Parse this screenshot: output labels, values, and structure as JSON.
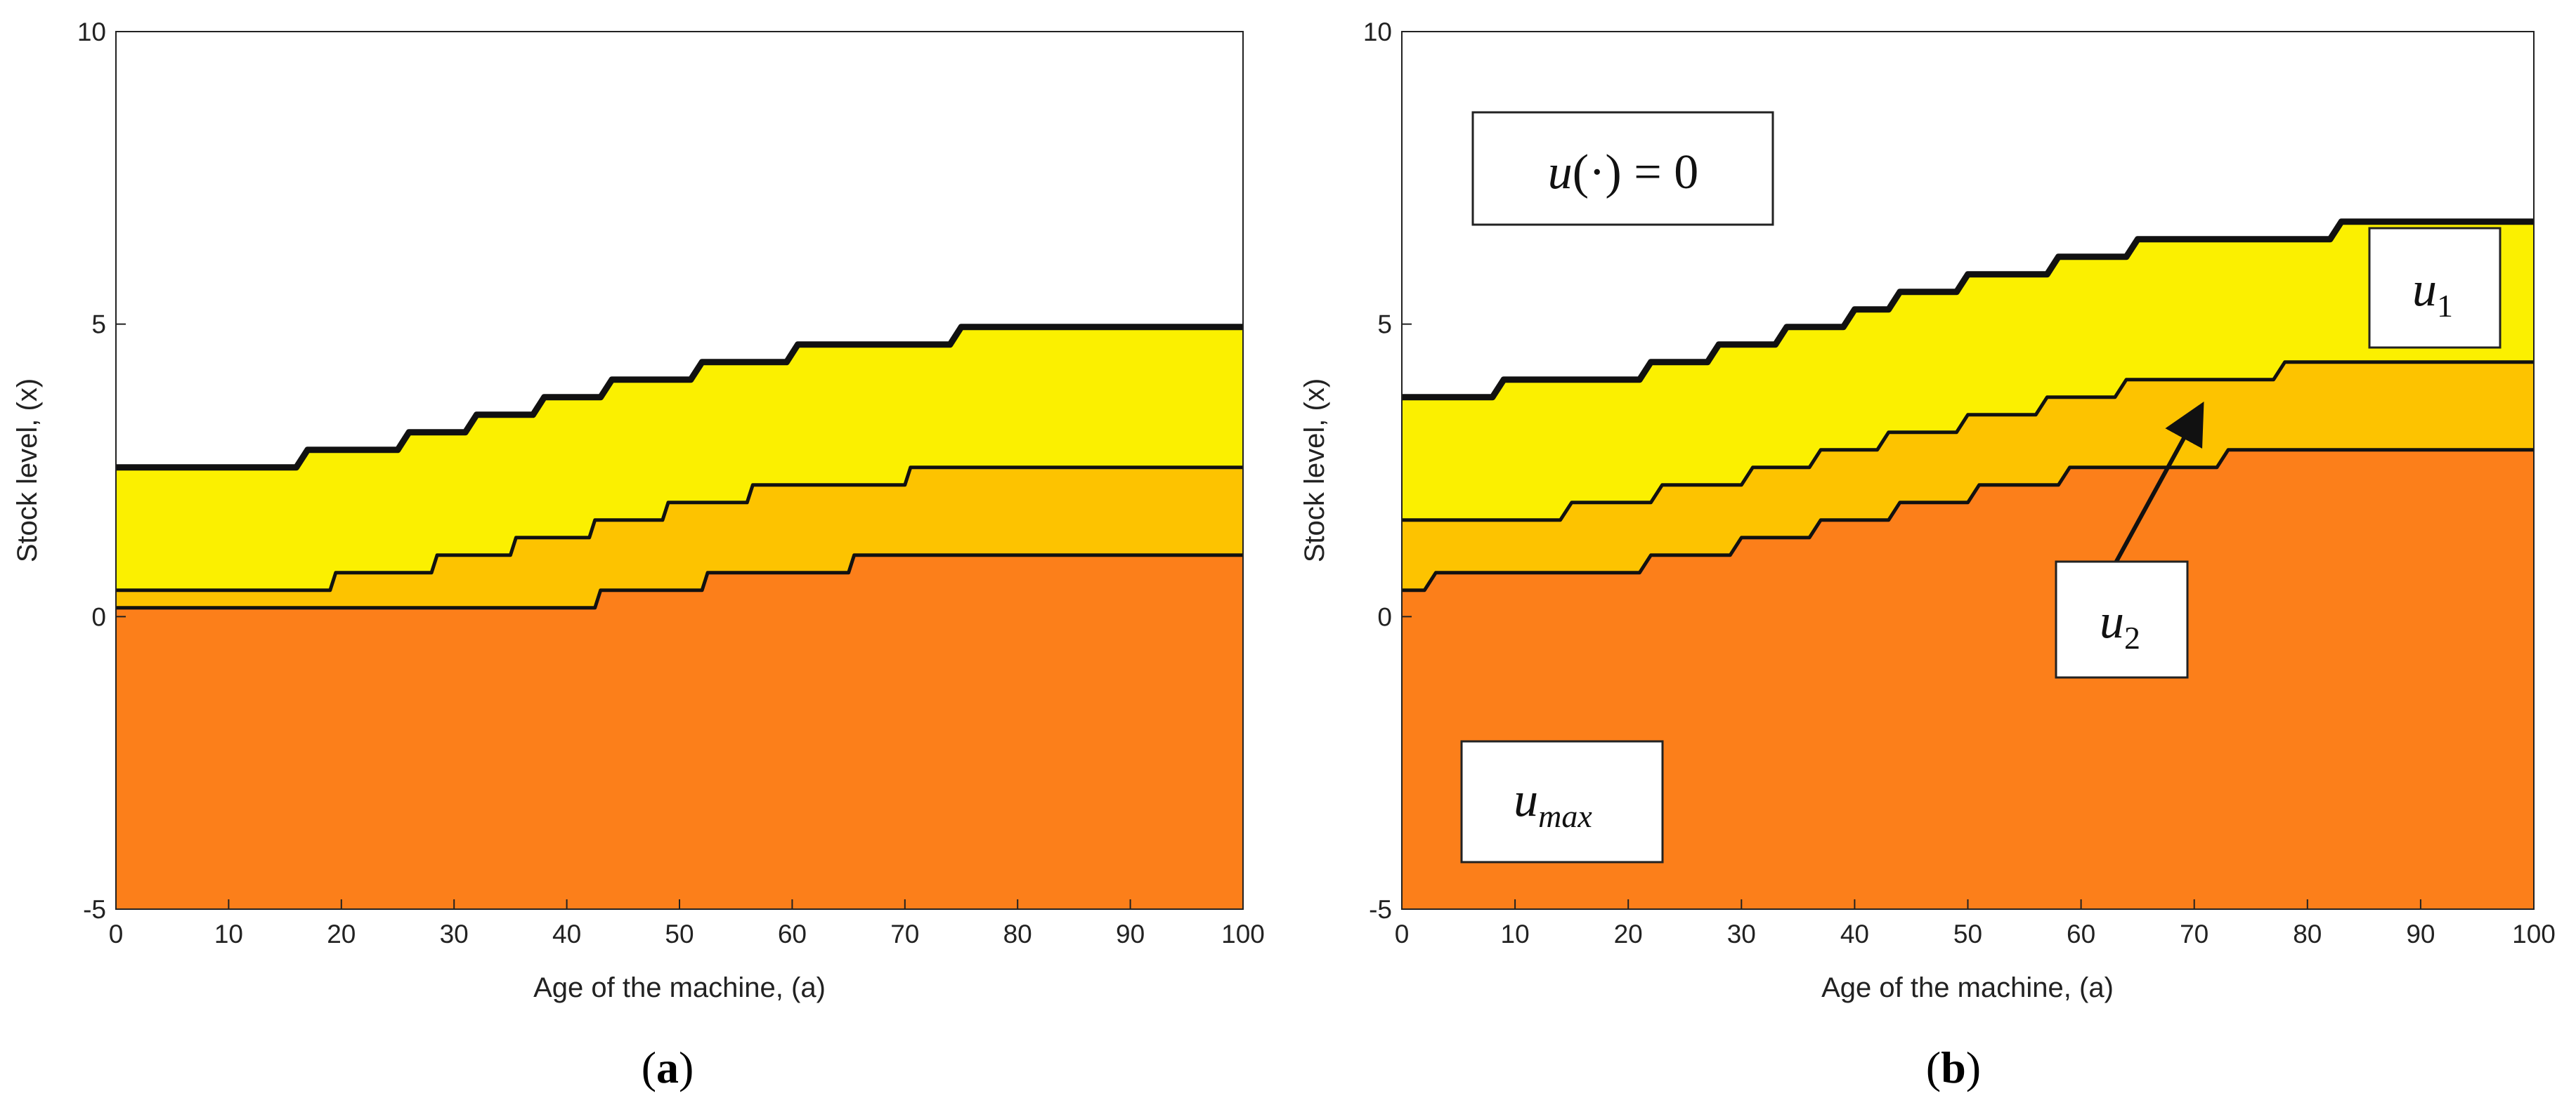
{
  "colors": {
    "u_max": "#fc7f1a",
    "u_2": "#fdc300",
    "u_1": "#fbf000",
    "zero": "#ffffff",
    "boundary": "#111111"
  },
  "chart_data": [
    {
      "type": "area",
      "panel": "a",
      "caption": {
        "open": "(",
        "letter": "a",
        "close": ")"
      },
      "xlabel": "Age of the machine, (a)",
      "ylabel": "Stock level, (x)",
      "xlim": [
        0,
        100
      ],
      "ylim": [
        -5,
        10
      ],
      "xticks": [
        "0",
        "10",
        "20",
        "30",
        "40",
        "50",
        "60",
        "70",
        "80",
        "90",
        "100"
      ],
      "yticks": [
        "-5",
        "0",
        "5",
        "10"
      ],
      "regions_bottom_to_top": [
        "u_max",
        "u_2",
        "u_1",
        "zero"
      ],
      "boundaries": [
        {
          "name": "u_max / u_2 boundary",
          "width": 5,
          "points": [
            [
              0,
              0.15
            ],
            [
              42.5,
              0.15
            ],
            [
              43,
              0.45
            ],
            [
              52,
              0.45
            ],
            [
              52.5,
              0.75
            ],
            [
              65,
              0.75
            ],
            [
              65.5,
              1.05
            ],
            [
              100,
              1.05
            ]
          ]
        },
        {
          "name": "u_2 / u_1 boundary",
          "width": 5,
          "points": [
            [
              0,
              0.45
            ],
            [
              19,
              0.45
            ],
            [
              19.5,
              0.75
            ],
            [
              28,
              0.75
            ],
            [
              28.5,
              1.05
            ],
            [
              35,
              1.05
            ],
            [
              35.5,
              1.35
            ],
            [
              42,
              1.35
            ],
            [
              42.5,
              1.65
            ],
            [
              48.5,
              1.65
            ],
            [
              49,
              1.95
            ],
            [
              56,
              1.95
            ],
            [
              56.5,
              2.25
            ],
            [
              70,
              2.25
            ],
            [
              70.5,
              2.55
            ],
            [
              100,
              2.55
            ]
          ]
        },
        {
          "name": "u_1 / zero boundary",
          "width": 9,
          "points": [
            [
              0,
              2.55
            ],
            [
              16,
              2.55
            ],
            [
              17,
              2.85
            ],
            [
              25,
              2.85
            ],
            [
              26,
              3.15
            ],
            [
              31,
              3.15
            ],
            [
              32,
              3.45
            ],
            [
              37,
              3.45
            ],
            [
              38,
              3.75
            ],
            [
              43,
              3.75
            ],
            [
              44,
              4.05
            ],
            [
              51,
              4.05
            ],
            [
              52,
              4.35
            ],
            [
              59.5,
              4.35
            ],
            [
              60.5,
              4.65
            ],
            [
              74,
              4.65
            ],
            [
              75,
              4.95
            ],
            [
              100,
              4.95
            ]
          ]
        }
      ]
    },
    {
      "type": "area",
      "panel": "b",
      "caption": {
        "open": "(",
        "letter": "b",
        "close": ")"
      },
      "xlabel": "Age of the machine, (a)",
      "ylabel": "Stock level, (x)",
      "xlim": [
        0,
        100
      ],
      "ylim": [
        -5,
        10
      ],
      "xticks": [
        "0",
        "10",
        "20",
        "30",
        "40",
        "50",
        "60",
        "70",
        "80",
        "90",
        "100"
      ],
      "yticks": [
        "-5",
        "0",
        "5",
        "10"
      ],
      "regions_bottom_to_top": [
        "u_max",
        "u_2",
        "u_1",
        "zero"
      ],
      "boundaries": [
        {
          "name": "u_max / u_2 boundary",
          "width": 5,
          "points": [
            [
              0,
              0.45
            ],
            [
              2,
              0.45
            ],
            [
              3,
              0.75
            ],
            [
              21,
              0.75
            ],
            [
              22,
              1.05
            ],
            [
              29,
              1.05
            ],
            [
              30,
              1.35
            ],
            [
              36,
              1.35
            ],
            [
              37,
              1.65
            ],
            [
              43,
              1.65
            ],
            [
              44,
              1.95
            ],
            [
              50,
              1.95
            ],
            [
              51,
              2.25
            ],
            [
              58,
              2.25
            ],
            [
              59,
              2.55
            ],
            [
              72,
              2.55
            ],
            [
              73,
              2.85
            ],
            [
              100,
              2.85
            ]
          ]
        },
        {
          "name": "u_2 / u_1 boundary",
          "width": 5,
          "points": [
            [
              0,
              1.65
            ],
            [
              14,
              1.65
            ],
            [
              15,
              1.95
            ],
            [
              22,
              1.95
            ],
            [
              23,
              2.25
            ],
            [
              30,
              2.25
            ],
            [
              31,
              2.55
            ],
            [
              36,
              2.55
            ],
            [
              37,
              2.85
            ],
            [
              42,
              2.85
            ],
            [
              43,
              3.15
            ],
            [
              49,
              3.15
            ],
            [
              50,
              3.45
            ],
            [
              56,
              3.45
            ],
            [
              57,
              3.75
            ],
            [
              63,
              3.75
            ],
            [
              64,
              4.05
            ],
            [
              77,
              4.05
            ],
            [
              78,
              4.35
            ],
            [
              100,
              4.35
            ]
          ]
        },
        {
          "name": "u_1 / zero boundary",
          "width": 9,
          "points": [
            [
              0,
              3.75
            ],
            [
              8,
              3.75
            ],
            [
              9,
              4.05
            ],
            [
              21,
              4.05
            ],
            [
              22,
              4.35
            ],
            [
              27,
              4.35
            ],
            [
              28,
              4.65
            ],
            [
              33,
              4.65
            ],
            [
              34,
              4.95
            ],
            [
              39,
              4.95
            ],
            [
              40,
              5.25
            ],
            [
              43,
              5.25
            ],
            [
              44,
              5.55
            ],
            [
              49,
              5.55
            ],
            [
              50,
              5.85
            ],
            [
              57,
              5.85
            ],
            [
              58,
              6.15
            ],
            [
              64,
              6.15
            ],
            [
              65,
              6.45
            ],
            [
              82,
              6.45
            ],
            [
              83,
              6.75
            ],
            [
              100,
              6.75
            ]
          ]
        }
      ],
      "annotations": [
        {
          "name": "label-zero",
          "base": "u",
          "rest": "(·) = 0"
        },
        {
          "name": "label-u1",
          "base": "u",
          "sub": "1"
        },
        {
          "name": "label-u2",
          "base": "u",
          "sub": "2",
          "arrow_tail": [
            63,
            0.9
          ],
          "arrow_head": [
            70.5,
            3.55
          ]
        },
        {
          "name": "label-umax",
          "base": "u",
          "sub": "max"
        }
      ]
    }
  ]
}
